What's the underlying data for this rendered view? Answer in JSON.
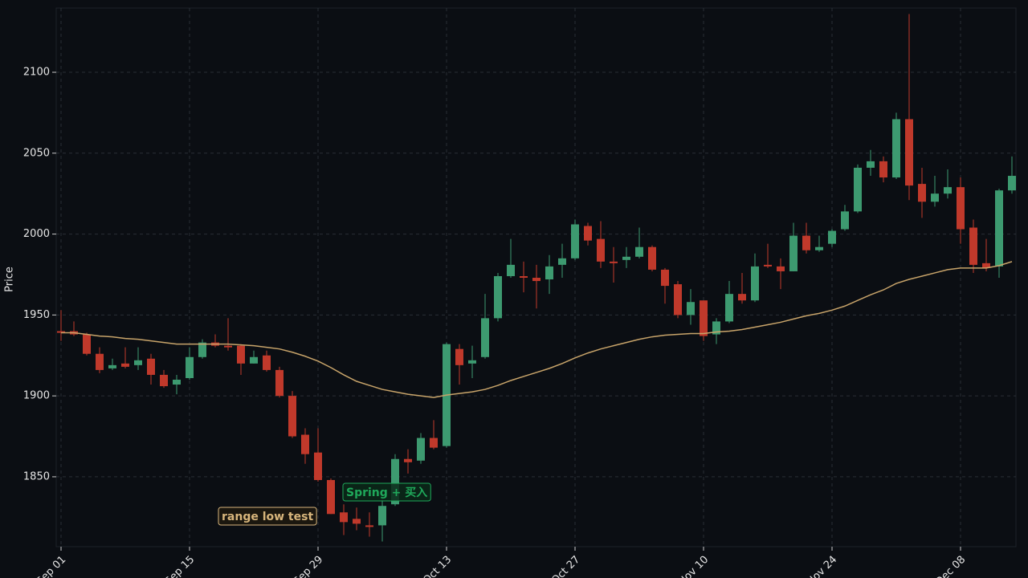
{
  "chart_data": {
    "type": "candlestick",
    "y_label": "Price",
    "xlim": [
      -0.375,
      74.3125
    ],
    "xticks": [
      {
        "value": 0,
        "label": "Sep 01"
      },
      {
        "value": 10,
        "label": "Sep 15"
      },
      {
        "value": 20,
        "label": "Sep 29"
      },
      {
        "value": 30,
        "label": "Oct 13"
      },
      {
        "value": 40,
        "label": "Oct 27"
      },
      {
        "value": 50,
        "label": "Nov 10"
      },
      {
        "value": 60,
        "label": "Nov 24"
      },
      {
        "value": 70,
        "label": "Dec 08"
      }
    ],
    "ylim": [
      1806.8,
      2139.7
    ],
    "yticks": [
      1850,
      1900,
      1950,
      2000,
      2050,
      2100
    ],
    "grid": true,
    "up_color": "#3d9a70",
    "down_color": "#c0392b",
    "open": [
      1940,
      1940,
      1938,
      1926,
      1917,
      1920,
      1919,
      1923,
      1913,
      1907,
      1911,
      1924,
      1933,
      1931,
      1931,
      1920,
      1925,
      1916,
      1900,
      1876,
      1865,
      1848,
      1828,
      1824,
      1820,
      1820,
      1833,
      1861,
      1860,
      1874,
      1869,
      1929,
      1920,
      1924,
      1948,
      1974,
      1974,
      1973,
      1972,
      1981,
      1985,
      2005,
      1997,
      1983,
      1984,
      1986,
      1992,
      1978,
      1969,
      1950,
      1959,
      1938,
      1946,
      1963,
      1959,
      1981,
      1980,
      1977,
      1999,
      1990,
      1994,
      2003,
      2014,
      2041,
      2045,
      2035,
      2071,
      2031,
      2020,
      2025,
      2029,
      2004,
      1982,
      1980,
      2027
    ],
    "high": [
      1953,
      1946,
      1939,
      1930,
      1923,
      1930,
      1930,
      1926,
      1916,
      1913,
      1930,
      1935,
      1938,
      1948,
      1932,
      1928,
      1928,
      1918,
      1903,
      1880,
      1880,
      1849,
      1833,
      1831,
      1828,
      1836,
      1864,
      1867,
      1877,
      1885,
      1933,
      1932,
      1931,
      1963,
      1976,
      1997,
      1983,
      1981,
      1987,
      1994,
      2009,
      2007,
      2008,
      1992,
      1992,
      2004,
      1993,
      1979,
      1971,
      1966,
      1959,
      1948,
      1971,
      1976,
      1988,
      1994,
      1985,
      2007,
      2007,
      1999,
      2003,
      2018,
      2043,
      2052,
      2048,
      2075,
      2136,
      2041,
      2036,
      2040,
      2035,
      2009,
      1997,
      2028,
      2048
    ],
    "low": [
      1934,
      1937,
      1925,
      1914,
      1916,
      1917,
      1916,
      1907,
      1905,
      1901,
      1910,
      1923,
      1930,
      1928,
      1913,
      1920,
      1915,
      1899,
      1874,
      1858,
      1847,
      1827,
      1814,
      1817,
      1813,
      1810,
      1832,
      1852,
      1858,
      1867,
      1868,
      1907,
      1911,
      1923,
      1946,
      1973,
      1964,
      1954,
      1963,
      1973,
      1984,
      1993,
      1979,
      1970,
      1979,
      1985,
      1977,
      1957,
      1948,
      1944,
      1934,
      1932,
      1945,
      1957,
      1958,
      1979,
      1966,
      1977,
      1988,
      1989,
      1992,
      2002,
      2013,
      2036,
      2032,
      2034,
      2021,
      2010,
      2017,
      2022,
      1994,
      1976,
      1977,
      1973,
      2025
    ],
    "close": [
      1939,
      1938,
      1926,
      1916,
      1919,
      1918,
      1922,
      1913,
      1906,
      1910,
      1924,
      1933,
      1931,
      1930,
      1920,
      1924,
      1916,
      1900,
      1875,
      1864,
      1848,
      1827,
      1822,
      1821,
      1819,
      1832,
      1861,
      1859,
      1874,
      1868,
      1932,
      1919,
      1922,
      1948,
      1974,
      1981,
      1973,
      1971,
      1980,
      1985,
      2006,
      1996,
      1983,
      1982,
      1986,
      1992,
      1978,
      1968,
      1950,
      1958,
      1937,
      1946,
      1963,
      1959,
      1980,
      1980,
      1977,
      1999,
      1990,
      1992,
      2002,
      2014,
      2041,
      2045,
      2035,
      2071,
      2030,
      2020,
      2025,
      2029,
      2003,
      1981,
      1979,
      2027,
      2036
    ],
    "overlays": [
      {
        "color": "#c8a46a",
        "values": [
          1939,
          1939,
          1938,
          1937,
          1936.5,
          1935.5,
          1935,
          1934,
          1933,
          1932,
          1932,
          1932,
          1932,
          1932,
          1931.5,
          1931,
          1930,
          1929,
          1927,
          1924.5,
          1921.5,
          1917.5,
          1913,
          1909,
          1906.5,
          1904,
          1902.5,
          1901,
          1900,
          1899,
          1900.5,
          1901.5,
          1902.5,
          1904,
          1906.5,
          1909.5,
          1912,
          1914.5,
          1917,
          1920,
          1923.5,
          1926.5,
          1929,
          1931,
          1933,
          1935,
          1936.5,
          1937.5,
          1938,
          1938.5,
          1938.5,
          1939.5,
          1940,
          1941,
          1942.5,
          1944,
          1945.5,
          1947.5,
          1949.5,
          1951,
          1953,
          1955.5,
          1959,
          1962.5,
          1965.5,
          1969.5,
          1972,
          1974,
          1976,
          1978,
          1979,
          1979,
          1979,
          1980.5,
          1983
        ]
      }
    ],
    "annotations": [
      {
        "text": "range low test",
        "color": "#d8b67c"
      },
      {
        "text": "Spring + 买入",
        "color": "#1fa85a"
      }
    ]
  }
}
